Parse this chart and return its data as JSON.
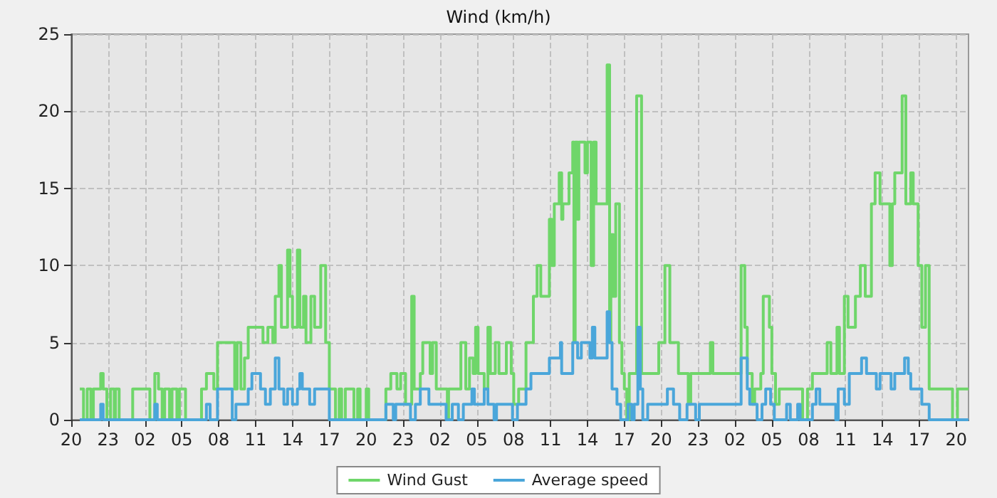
{
  "chart_data": {
    "type": "step",
    "title": "Wind (km/h)",
    "xlim": [
      "--01-01T20:00",
      "--01-04T21:00"
    ],
    "xticks": [
      {
        "value": "--01-01T20:00",
        "label": "20"
      },
      {
        "value": "--01-01T23:00",
        "label": "23"
      },
      {
        "value": "--01-02T02:00",
        "label": "02"
      },
      {
        "value": "--01-02T05:00",
        "label": "05"
      },
      {
        "value": "--01-02T08:00",
        "label": "08"
      },
      {
        "value": "--01-02T11:00",
        "label": "11"
      },
      {
        "value": "--01-02T14:00",
        "label": "14"
      },
      {
        "value": "--01-02T17:00",
        "label": "17"
      },
      {
        "value": "--01-02T20:00",
        "label": "20"
      },
      {
        "value": "--01-02T23:00",
        "label": "23"
      },
      {
        "value": "--01-03T02:00",
        "label": "02"
      },
      {
        "value": "--01-03T05:00",
        "label": "05"
      },
      {
        "value": "--01-03T08:00",
        "label": "08"
      },
      {
        "value": "--01-03T11:00",
        "label": "11"
      },
      {
        "value": "--01-03T14:00",
        "label": "14"
      },
      {
        "value": "--01-03T17:00",
        "label": "17"
      },
      {
        "value": "--01-03T20:00",
        "label": "20"
      },
      {
        "value": "--01-03T23:00",
        "label": "23"
      },
      {
        "value": "--01-04T02:00",
        "label": "02"
      },
      {
        "value": "--01-04T05:00",
        "label": "05"
      },
      {
        "value": "--01-04T08:00",
        "label": "08"
      },
      {
        "value": "--01-04T11:00",
        "label": "11"
      },
      {
        "value": "--01-04T14:00",
        "label": "14"
      },
      {
        "value": "--01-04T17:00",
        "label": "17"
      },
      {
        "value": "--01-04T20:00",
        "label": "20"
      }
    ],
    "ylim": [
      0,
      25
    ],
    "yticks": [
      0,
      5,
      10,
      15,
      20,
      25
    ],
    "grid": true,
    "legend": "bottom",
    "line_style": "solid",
    "marker": "none",
    "series": [
      {
        "name": "Wind Gust",
        "color": "#6fd66a",
        "x": [
          "--01-01T20:42",
          "--01-01T21:00",
          "--01-01T21:18",
          "--01-01T21:36",
          "--01-01T21:48",
          "--01-01T22:24",
          "--01-01T22:36",
          "--01-01T22:54",
          "--01-01T23:12",
          "--01-01T23:30",
          "--01-01T23:36",
          "--01-01T23:54",
          "--01-02T01:00",
          "--01-02T02:24",
          "--01-02T02:48",
          "--01-02T03:06",
          "--01-02T03:24",
          "--01-02T03:36",
          "--01-02T04:00",
          "--01-02T04:12",
          "--01-02T04:36",
          "--01-02T04:48",
          "--01-02T05:18",
          "--01-02T06:36",
          "--01-02T07:00",
          "--01-02T07:36",
          "--01-02T07:54",
          "--01-02T09:18",
          "--01-02T09:30",
          "--01-02T09:48",
          "--01-02T10:06",
          "--01-02T10:24",
          "--01-02T11:36",
          "--01-02T12:00",
          "--01-02T12:24",
          "--01-02T12:36",
          "--01-02T12:54",
          "--01-02T13:06",
          "--01-02T13:36",
          "--01-02T13:48",
          "--01-02T14:00",
          "--01-02T14:24",
          "--01-02T14:36",
          "--01-02T14:54",
          "--01-02T15:06",
          "--01-02T15:30",
          "--01-02T15:48",
          "--01-02T16:18",
          "--01-02T16:42",
          "--01-02T17:00",
          "--01-02T17:30",
          "--01-02T17:48",
          "--01-02T18:00",
          "--01-02T18:18",
          "--01-02T19:00",
          "--01-02T19:18",
          "--01-02T19:30",
          "--01-02T20:00",
          "--01-02T20:12",
          "--01-02T21:36",
          "--01-02T22:00",
          "--01-02T22:30",
          "--01-02T22:48",
          "--01-02T23:12",
          "--01-02T23:42",
          "--01-02T23:54",
          "--01-03T00:24",
          "--01-03T00:36",
          "--01-03T01:12",
          "--01-03T01:24",
          "--01-03T01:42",
          "--01-03T02:36",
          "--01-03T02:42",
          "--01-03T03:42",
          "--01-03T04:06",
          "--01-03T04:24",
          "--01-03T04:42",
          "--01-03T04:54",
          "--01-03T05:06",
          "--01-03T05:36",
          "--01-03T05:54",
          "--01-03T06:06",
          "--01-03T06:30",
          "--01-03T06:48",
          "--01-03T07:24",
          "--01-03T07:48",
          "--01-03T08:00",
          "--01-03T08:24",
          "--01-03T09:00",
          "--01-03T09:36",
          "--01-03T09:54",
          "--01-03T10:12",
          "--01-03T10:54",
          "--01-03T11:06",
          "--01-03T11:18",
          "--01-03T11:42",
          "--01-03T11:54",
          "--01-03T12:00",
          "--01-03T12:30",
          "--01-03T12:48",
          "--01-03T12:54",
          "--01-03T13:00",
          "--01-03T13:12",
          "--01-03T13:18",
          "--01-03T13:48",
          "--01-03T14:00",
          "--01-03T14:18",
          "--01-03T14:30",
          "--01-03T14:42",
          "--01-03T15:36",
          "--01-03T15:48",
          "--01-03T15:54",
          "--01-03T16:06",
          "--01-03T16:18",
          "--01-03T16:36",
          "--01-03T16:48",
          "--01-03T17:00",
          "--01-03T17:12",
          "--01-03T17:24",
          "--01-03T18:00",
          "--01-03T18:24",
          "--01-03T19:48",
          "--01-03T20:18",
          "--01-03T20:42",
          "--01-03T21:24",
          "--01-03T22:12",
          "--01-03T22:24",
          "--01-04T00:00",
          "--01-04T00:12",
          "--01-04T02:30",
          "--01-04T02:48",
          "--01-04T03:00",
          "--01-04T03:24",
          "--01-04T03:36",
          "--01-04T04:06",
          "--01-04T04:18",
          "--01-04T04:48",
          "--01-04T05:00",
          "--01-04T05:18",
          "--01-04T05:36",
          "--01-04T07:30",
          "--01-04T07:54",
          "--01-04T08:18",
          "--01-04T09:30",
          "--01-04T09:48",
          "--01-04T10:18",
          "--01-04T10:30",
          "--01-04T10:54",
          "--01-04T11:12",
          "--01-04T11:48",
          "--01-04T12:12",
          "--01-04T12:36",
          "--01-04T13:06",
          "--01-04T13:24",
          "--01-04T13:48",
          "--01-04T14:36",
          "--01-04T14:48",
          "--01-04T15:00",
          "--01-04T15:36",
          "--01-04T15:54",
          "--01-04T16:18",
          "--01-04T16:30",
          "--01-04T16:54",
          "--01-04T17:12",
          "--01-04T17:30",
          "--01-04T17:48",
          "--01-04T19:42",
          "--01-04T20:06",
          "--01-04T21:00"
        ],
        "values": [
          2,
          0,
          2,
          0,
          2,
          3,
          2,
          0,
          2,
          0,
          2,
          0,
          2,
          0,
          3,
          2,
          0,
          2,
          0,
          2,
          0,
          2,
          0,
          2,
          3,
          2,
          5,
          2,
          5,
          2,
          4,
          6,
          5,
          6,
          5,
          8,
          10,
          6,
          11,
          8,
          6,
          11,
          6,
          8,
          5,
          8,
          6,
          10,
          5,
          2,
          0,
          2,
          0,
          2,
          0,
          2,
          0,
          2,
          0,
          2,
          3,
          2,
          3,
          1,
          8,
          2,
          3,
          5,
          3,
          5,
          2,
          0,
          2,
          5,
          2,
          4,
          3,
          6,
          3,
          2,
          6,
          3,
          5,
          3,
          5,
          3,
          1,
          2,
          5,
          8,
          10,
          8,
          13,
          10,
          14,
          16,
          13,
          14,
          16,
          18,
          5,
          18,
          13,
          18,
          16,
          18,
          10,
          18,
          14,
          23,
          5,
          12,
          8,
          14,
          5,
          3,
          2,
          0,
          3,
          21,
          3,
          5,
          10,
          5,
          3,
          1,
          3,
          5,
          3,
          10,
          6,
          3,
          1,
          2,
          3,
          8,
          6,
          3,
          1,
          2,
          0,
          2,
          3,
          5,
          3,
          6,
          3,
          8,
          6,
          8,
          10,
          8,
          14,
          16,
          14,
          10,
          14,
          16,
          21,
          14,
          16,
          14,
          10,
          6,
          10,
          2,
          0,
          2,
          2
        ]
      },
      {
        "name": "Average speed",
        "color": "#4aa6da",
        "x": [
          "--01-01T20:42",
          "--01-01T22:24",
          "--01-01T22:36",
          "--01-02T02:48",
          "--01-02T03:00",
          "--01-02T07:00",
          "--01-02T07:18",
          "--01-02T07:54",
          "--01-02T09:06",
          "--01-02T09:24",
          "--01-02T10:24",
          "--01-02T10:42",
          "--01-02T11:24",
          "--01-02T11:48",
          "--01-02T12:12",
          "--01-02T12:36",
          "--01-02T12:54",
          "--01-02T13:18",
          "--01-02T13:36",
          "--01-02T14:00",
          "--01-02T14:24",
          "--01-02T14:36",
          "--01-02T14:48",
          "--01-02T15:24",
          "--01-02T15:48",
          "--01-02T17:00",
          "--01-02T21:36",
          "--01-02T22:12",
          "--01-02T22:24",
          "--01-02T23:36",
          "--01-03T00:00",
          "--01-03T00:24",
          "--01-03T01:06",
          "--01-03T02:30",
          "--01-03T03:00",
          "--01-03T03:30",
          "--01-03T03:54",
          "--01-03T04:36",
          "--01-03T04:48",
          "--01-03T05:36",
          "--01-03T05:54",
          "--01-03T06:24",
          "--01-03T06:36",
          "--01-03T07:54",
          "--01-03T08:18",
          "--01-03T09:00",
          "--01-03T09:24",
          "--01-03T10:54",
          "--01-03T11:48",
          "--01-03T11:54",
          "--01-03T12:48",
          "--01-03T13:12",
          "--01-03T13:30",
          "--01-03T14:12",
          "--01-03T14:24",
          "--01-03T14:36",
          "--01-03T15:36",
          "--01-03T15:48",
          "--01-03T16:00",
          "--01-03T16:24",
          "--01-03T16:42",
          "--01-03T17:18",
          "--01-03T17:36",
          "--01-03T17:48",
          "--01-03T18:06",
          "--01-03T18:18",
          "--01-03T18:30",
          "--01-03T18:54",
          "--01-03T20:30",
          "--01-03T21:00",
          "--01-03T21:30",
          "--01-03T22:06",
          "--01-03T22:48",
          "--01-03T23:06",
          "--01-04T02:30",
          "--01-04T03:00",
          "--01-04T03:12",
          "--01-04T03:48",
          "--01-04T04:12",
          "--01-04T04:30",
          "--01-04T04:54",
          "--01-04T05:12",
          "--01-04T06:12",
          "--01-04T06:30",
          "--01-04T07:06",
          "--01-04T07:18",
          "--01-04T08:18",
          "--01-04T08:36",
          "--01-04T08:54",
          "--01-04T10:12",
          "--01-04T10:24",
          "--01-04T10:54",
          "--01-04T11:18",
          "--01-04T12:18",
          "--01-04T12:42",
          "--01-04T13:30",
          "--01-04T13:48",
          "--01-04T14:42",
          "--01-04T15:00",
          "--01-04T15:48",
          "--01-04T16:06",
          "--01-04T16:18",
          "--01-04T17:12",
          "--01-04T17:48",
          "--01-04T21:00"
        ],
        "values": [
          0,
          1,
          0,
          1,
          0,
          1,
          0,
          2,
          0,
          1,
          2,
          3,
          2,
          1,
          2,
          4,
          2,
          1,
          2,
          1,
          2,
          3,
          2,
          1,
          2,
          0,
          1,
          0,
          1,
          0,
          1,
          2,
          1,
          0,
          1,
          0,
          1,
          2,
          1,
          2,
          1,
          0,
          1,
          0,
          1,
          2,
          3,
          4,
          5,
          3,
          5,
          4,
          5,
          4,
          6,
          4,
          7,
          5,
          2,
          1,
          0,
          1,
          0,
          1,
          6,
          2,
          0,
          1,
          2,
          1,
          0,
          1,
          0,
          1,
          4,
          2,
          1,
          0,
          1,
          2,
          1,
          0,
          1,
          0,
          1,
          0,
          1,
          2,
          1,
          0,
          2,
          1,
          3,
          4,
          3,
          2,
          3,
          2,
          3,
          4,
          3,
          2,
          1,
          0,
          0
        ]
      }
    ]
  }
}
